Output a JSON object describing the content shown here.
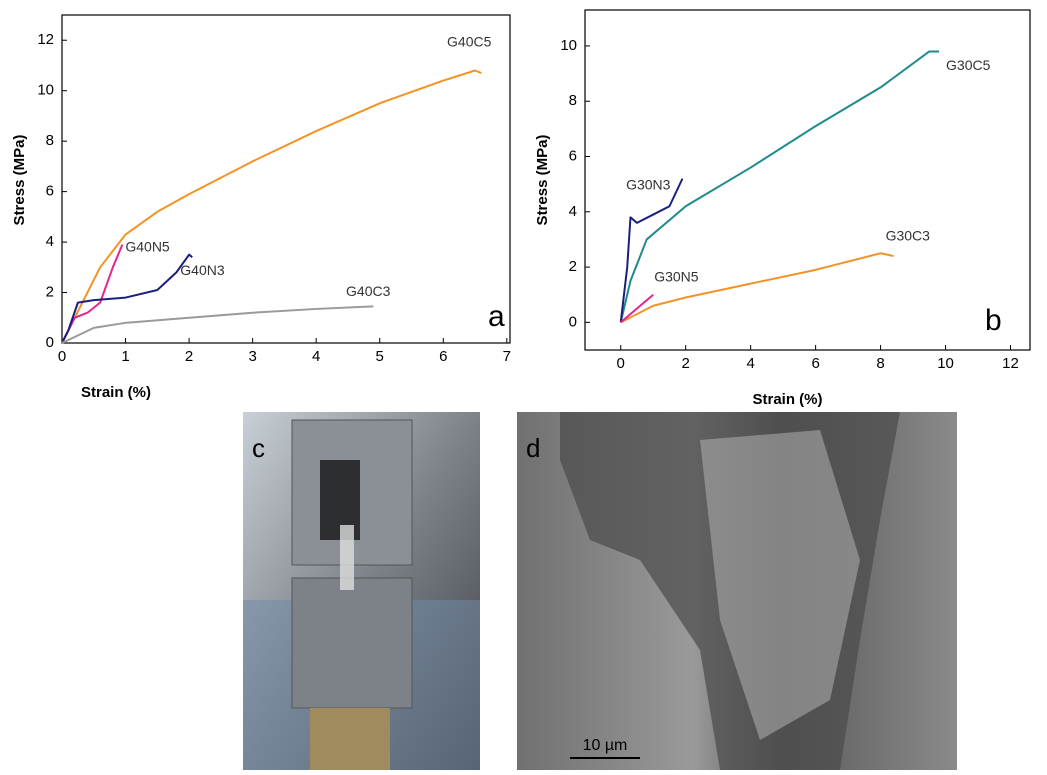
{
  "chart_data": [
    {
      "type": "line",
      "panel_label": "a",
      "x_label": "Strain (%)",
      "y_label": "Stress (MPa)",
      "xlim": [
        0,
        7.05
      ],
      "ylim": [
        0,
        13
      ],
      "xticks": [
        0,
        1,
        2,
        3,
        4,
        5,
        6,
        7
      ],
      "yticks": [
        0,
        2,
        4,
        6,
        8,
        10,
        12
      ],
      "series": [
        {
          "name": "G40C5",
          "color": "#f39325",
          "x": [
            0,
            0.3,
            0.6,
            1,
            1.5,
            2,
            3,
            4,
            5,
            6,
            6.5,
            6.6
          ],
          "values": [
            0,
            1.5,
            3,
            4.3,
            5.2,
            5.9,
            7.2,
            8.4,
            9.5,
            10.4,
            10.8,
            10.7
          ]
        },
        {
          "name": "G40N5",
          "color": "#e6258c",
          "x": [
            0,
            0.2,
            0.4,
            0.6,
            0.8,
            0.95
          ],
          "values": [
            0,
            1,
            1.2,
            1.6,
            3,
            3.9
          ]
        },
        {
          "name": "G40N3",
          "color": "#1b1f80",
          "x": [
            0,
            0.1,
            0.25,
            0.5,
            1,
            1.5,
            1.8,
            2,
            2.05
          ],
          "values": [
            0,
            0.5,
            1.6,
            1.7,
            1.8,
            2.1,
            2.8,
            3.5,
            3.4
          ]
        },
        {
          "name": "G40C3",
          "color": "#9a9a9a",
          "x": [
            0,
            0.5,
            1,
            2,
            3,
            4,
            4.9
          ],
          "values": [
            0,
            0.6,
            0.8,
            1.0,
            1.2,
            1.35,
            1.45
          ]
        }
      ]
    },
    {
      "type": "line",
      "panel_label": "b",
      "x_label": "Strain (%)",
      "y_label": "Stress (MPa)",
      "xlim": [
        -1.1,
        12.6
      ],
      "ylim": [
        -1,
        11.3
      ],
      "xticks": [
        0,
        2,
        4,
        6,
        8,
        10,
        12
      ],
      "yticks": [
        0,
        2,
        4,
        6,
        8,
        10
      ],
      "series": [
        {
          "name": "G30C5",
          "color": "#1e8a8a",
          "x": [
            0,
            0.3,
            0.8,
            1.5,
            2,
            4,
            6,
            8,
            9.5,
            9.8
          ],
          "values": [
            0,
            1.5,
            3,
            3.7,
            4.2,
            5.6,
            7.1,
            8.5,
            9.8,
            9.8
          ]
        },
        {
          "name": "G30N3",
          "color": "#1b1f80",
          "x": [
            0,
            0.2,
            0.3,
            0.5,
            1,
            1.5,
            1.9
          ],
          "values": [
            0,
            2,
            3.8,
            3.6,
            3.9,
            4.2,
            5.2
          ]
        },
        {
          "name": "G30C3",
          "color": "#f39325",
          "x": [
            0,
            1,
            2,
            4,
            6,
            8,
            8.4
          ],
          "values": [
            0,
            0.6,
            0.9,
            1.4,
            1.9,
            2.5,
            2.4
          ]
        },
        {
          "name": "G30N5",
          "color": "#e6258c",
          "x": [
            0,
            0.5,
            1
          ],
          "values": [
            0,
            0.5,
            1
          ]
        }
      ]
    }
  ],
  "images": [
    {
      "panel_label": "c"
    },
    {
      "panel_label": "d",
      "scale_bar": "10 µm"
    }
  ]
}
